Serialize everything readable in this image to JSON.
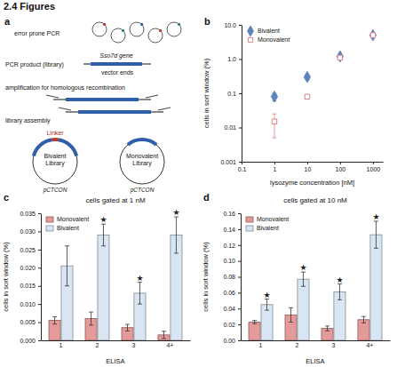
{
  "heading": "2.4 Figures",
  "diagram": {
    "panel": "a",
    "step_1": "error prone PCR",
    "product": "PCR product (library)",
    "gene": "Sso7d gene",
    "vector": "vector ends",
    "step_2": "amplification for homologous recombination",
    "step_3": "library assembly",
    "linker": "Linker",
    "libraries": [
      {
        "name": "Bivalent Library",
        "plasmid": "pCTCON"
      },
      {
        "name": "Monovalent Library",
        "plasmid": "pCTCON"
      }
    ]
  },
  "chart_data": [
    {
      "type": "scatter",
      "panel": "b",
      "x_label": "lysozyme concentration [nM]",
      "y_label": "cells in sort window (%)",
      "log": true,
      "xlim": [
        0.1,
        2000
      ],
      "xticks": [
        0.1,
        1,
        10,
        100,
        1000
      ],
      "ylim": [
        0.001,
        10
      ],
      "yticks": [
        0.001,
        0.01,
        0.1,
        {
          "value": 1,
          "label": "1.0"
        },
        {
          "value": 10,
          "label": "10.0"
        }
      ],
      "legend": "upper left",
      "x": [
        1,
        10,
        100,
        1000
      ],
      "series": [
        {
          "name": "Bivalent",
          "color": "#5f84bb",
          "marker": "diamond",
          "values": [
            0.08,
            0.3,
            1.2,
            5
          ],
          "errors": [
            0.02,
            0.05,
            0.15,
            0.5
          ]
        },
        {
          "name": "Monovalent",
          "color": "#d98585",
          "marker": "square",
          "values": [
            0.015,
            0.08,
            1.1,
            5
          ],
          "errors": [
            0.01,
            0.01,
            0.15,
            0.5
          ]
        }
      ]
    },
    {
      "type": "bar",
      "panel": "c",
      "title": "cells gated at 1 nM",
      "x_label": "ELISA",
      "y_label": "cells in sort window (%)",
      "categories": [
        "1",
        "2",
        "3",
        "4+"
      ],
      "ylim": [
        0,
        0.035
      ],
      "yticks": [
        {
          "value": 0,
          "label": "0.000"
        },
        {
          "value": 0.005,
          "label": "0.005"
        },
        {
          "value": 0.01,
          "label": "0.010"
        },
        {
          "value": 0.015,
          "label": "0.015"
        },
        {
          "value": 0.02,
          "label": "0.020"
        },
        {
          "value": 0.025,
          "label": "0.025"
        },
        {
          "value": 0.03,
          "label": "0.030"
        },
        {
          "value": 0.035,
          "label": "0.035"
        }
      ],
      "legend": "upper left",
      "series": [
        {
          "name": "Monovalent",
          "color": "#e59a9a",
          "values": [
            0.0055,
            0.006,
            0.0035,
            0.0015
          ],
          "errors": [
            0.001,
            0.0018,
            0.0009,
            0.001
          ]
        },
        {
          "name": "Bivalent",
          "color": "#d8e5f2",
          "values": [
            0.0205,
            0.029,
            0.013,
            0.029
          ],
          "errors": [
            0.0055,
            0.003,
            0.003,
            0.005
          ]
        }
      ],
      "annotations": [
        {
          "category": "2",
          "series": "Bivalent",
          "text": "★"
        },
        {
          "category": "3",
          "series": "Bivalent",
          "text": "★"
        },
        {
          "category": "4+",
          "series": "Bivalent",
          "text": "★"
        }
      ]
    },
    {
      "type": "bar",
      "panel": "d",
      "title": "cells gated at 10 nM",
      "x_label": "ELISA",
      "y_label": "cells in sort window (%)",
      "categories": [
        "1",
        "2",
        "3",
        "4+"
      ],
      "ylim": [
        0,
        0.16
      ],
      "yticks": [
        {
          "value": 0,
          "label": "0.00"
        },
        {
          "value": 0.02,
          "label": "0.02"
        },
        {
          "value": 0.04,
          "label": "0.04"
        },
        {
          "value": 0.06,
          "label": "0.06"
        },
        {
          "value": 0.08,
          "label": "0.08"
        },
        {
          "value": 0.1,
          "label": "0.10"
        },
        {
          "value": 0.12,
          "label": "0.12"
        },
        {
          "value": 0.14,
          "label": "0.14"
        },
        {
          "value": 0.16,
          "label": "0.16"
        }
      ],
      "legend": "upper left",
      "series": [
        {
          "name": "Monovalent",
          "color": "#e59a9a",
          "values": [
            0.023,
            0.032,
            0.015,
            0.026
          ],
          "errors": [
            0.002,
            0.009,
            0.003,
            0.004
          ]
        },
        {
          "name": "Bivalent",
          "color": "#d8e5f2",
          "values": [
            0.045,
            0.077,
            0.061,
            0.133
          ],
          "errors": [
            0.007,
            0.009,
            0.01,
            0.017
          ]
        }
      ],
      "annotations": [
        {
          "category": "1",
          "series": "Bivalent",
          "text": "★"
        },
        {
          "category": "2",
          "series": "Bivalent",
          "text": "★"
        },
        {
          "category": "3",
          "series": "Bivalent",
          "text": "★"
        },
        {
          "category": "4+",
          "series": "Bivalent",
          "text": "★"
        }
      ]
    }
  ]
}
